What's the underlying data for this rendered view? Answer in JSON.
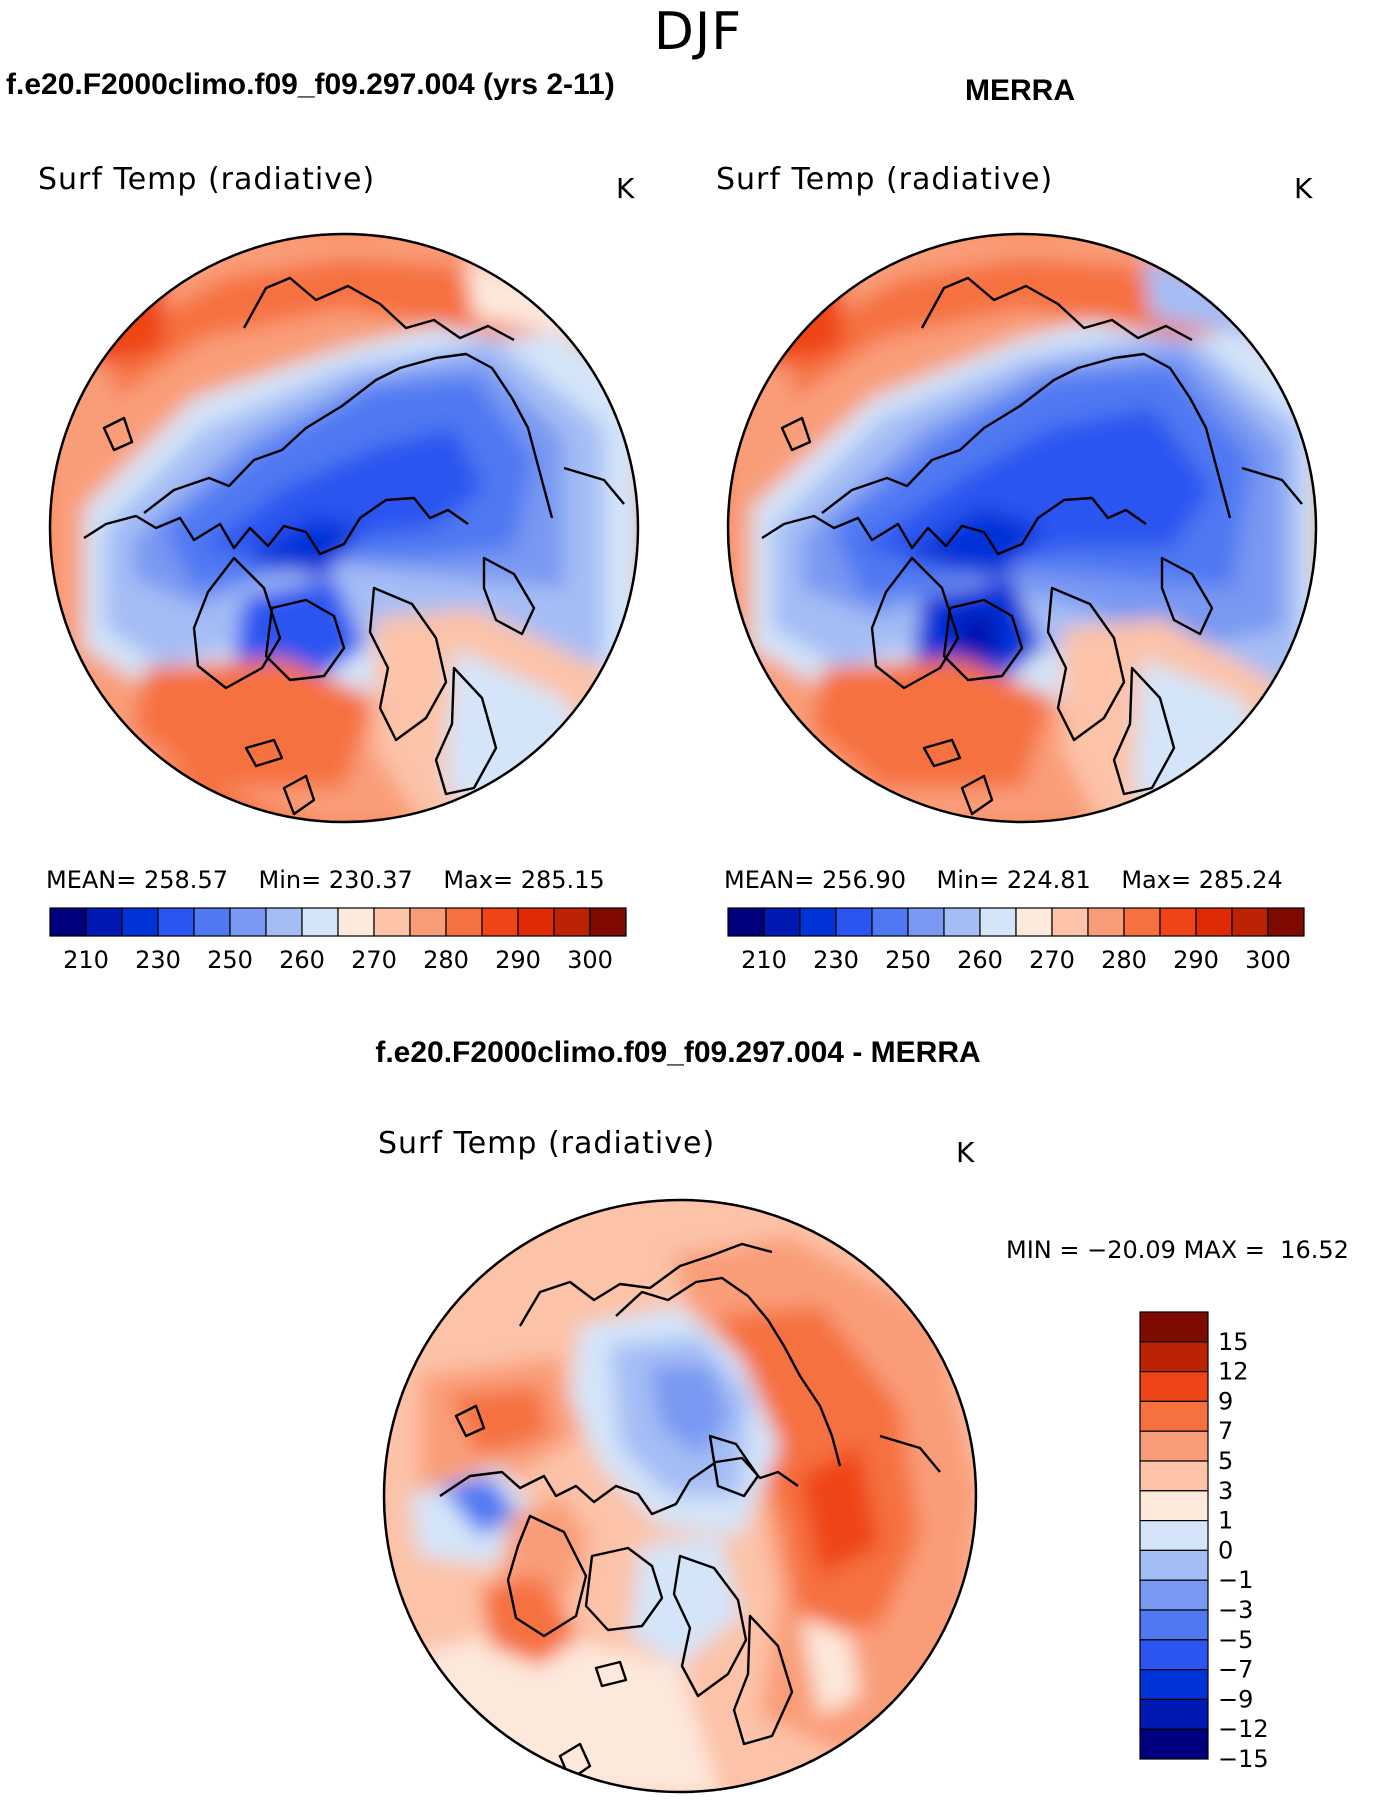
{
  "season": "DJF",
  "panels": [
    {
      "case_title": "f.e20.F2000climo.f09_f09.297.004 (yrs 2-11)",
      "variable": "Surf Temp (radiative)",
      "units": "K",
      "stats": {
        "mean_label": "MEAN=",
        "mean": "258.57",
        "min_label": "Min=",
        "min": "230.37",
        "max_label": "Max=",
        "max": "285.15"
      }
    },
    {
      "case_title": "MERRA",
      "variable": "Surf Temp (radiative)",
      "units": "K",
      "stats": {
        "mean_label": "MEAN=",
        "mean": "256.90",
        "min_label": "Min=",
        "min": "224.81",
        "max_label": "Max=",
        "max": "285.24"
      }
    }
  ],
  "abs_colorbar": {
    "colors": [
      "#00007f",
      "#0019b2",
      "#0033d8",
      "#2a55f0",
      "#4f78f2",
      "#7898f2",
      "#a5bdf5",
      "#d4e5f9",
      "#fde8dc",
      "#fcc3a8",
      "#f99d78",
      "#f6713f",
      "#ef4415",
      "#de2b06",
      "#bb2304",
      "#7f0a00"
    ],
    "tick_labels": [
      "210",
      "230",
      "250",
      "260",
      "270",
      "280",
      "290",
      "300"
    ]
  },
  "diff_panel": {
    "case_title": "f.e20.F2000climo.f09_f09.297.004 - MERRA",
    "variable": "Surf Temp (radiative)",
    "units": "K",
    "stats": {
      "min_label": "MIN =",
      "min": "−20.09",
      "max_label": "MAX =",
      "max": "16.52"
    },
    "colorbar": {
      "colors_top_to_bottom": [
        "#7f0a00",
        "#bb2304",
        "#ef4415",
        "#f6713f",
        "#f99d78",
        "#fcc3a8",
        "#fde8dc",
        "#d4e5f9",
        "#a5bdf5",
        "#7898f2",
        "#4f78f2",
        "#2a55f0",
        "#0033d8",
        "#0019b2",
        "#00007f"
      ],
      "tick_labels_top_to_bottom": [
        "15",
        "12",
        "9",
        "7",
        "5",
        "3",
        "1",
        "0",
        "−1",
        "−3",
        "−5",
        "−7",
        "−9",
        "−12",
        "−15"
      ]
    }
  }
}
